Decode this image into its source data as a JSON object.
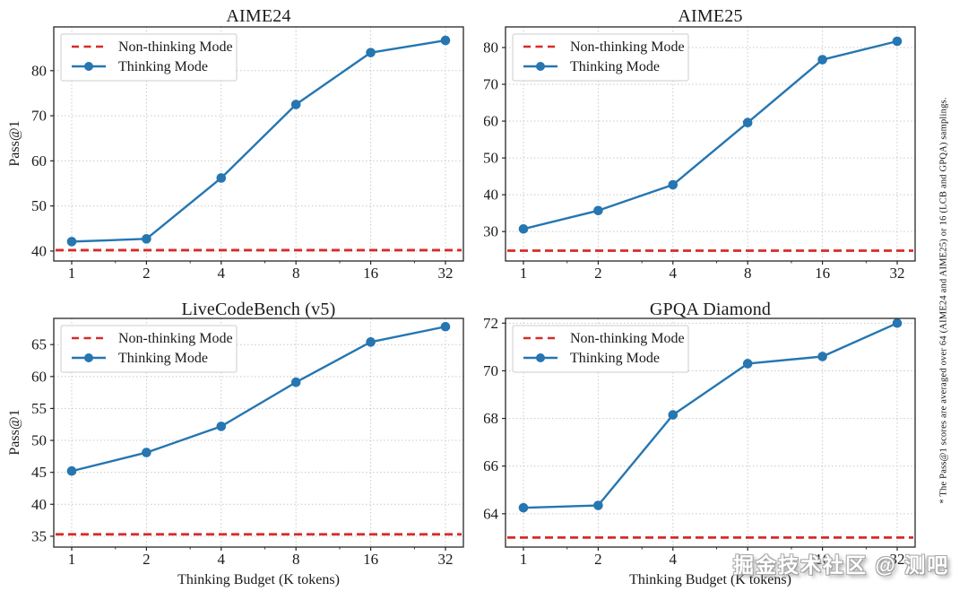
{
  "figure": {
    "background": "#ffffff",
    "side_note": "* The Pass@1 scores are averaged over 64 (AIME24 and AIME25) or 16 (LCB and GPQA) samplings.",
    "watermark": "掘金技术社区 @ 测吧"
  },
  "colors": {
    "thinking_line": "#2576b1",
    "non_thinking_line": "#d62b28",
    "grid": "#c9c9c9",
    "axis": "#262626",
    "text": "#1a1a1a",
    "legend_border": "#cccccc",
    "legend_bg": "#ffffff"
  },
  "legend": {
    "non_thinking_label": "Non-thinking Mode",
    "thinking_label": "Thinking Mode"
  },
  "x_axis": {
    "label": "Thinking Budget (K tokens)",
    "ticks": [
      1,
      2,
      4,
      8,
      16,
      32
    ],
    "scale": "log2"
  },
  "y_axis": {
    "label": "Pass@1"
  },
  "chart_data": [
    {
      "type": "line",
      "title": "AIME24",
      "x": [
        1,
        2,
        4,
        8,
        16,
        32
      ],
      "xlabel": "",
      "ylabel": "Pass@1",
      "yticks": [
        40,
        50,
        60,
        70,
        80
      ],
      "ylim": [
        37.8,
        89.7
      ],
      "grid": true,
      "legend_position": "upper left",
      "series": [
        {
          "name": "Non-thinking Mode",
          "style": "dashed-hline",
          "value": 40.2
        },
        {
          "name": "Thinking Mode",
          "style": "solid-markers",
          "values": [
            42.1,
            42.7,
            56.2,
            72.5,
            84.0,
            86.7
          ]
        }
      ]
    },
    {
      "type": "line",
      "title": "AIME25",
      "x": [
        1,
        2,
        4,
        8,
        16,
        32
      ],
      "xlabel": "",
      "ylabel": "",
      "yticks": [
        30,
        40,
        50,
        60,
        70,
        80
      ],
      "ylim": [
        22.0,
        85.6
      ],
      "grid": true,
      "legend_position": "upper left",
      "series": [
        {
          "name": "Non-thinking Mode",
          "style": "dashed-hline",
          "value": 24.8
        },
        {
          "name": "Thinking Mode",
          "style": "solid-markers",
          "values": [
            30.7,
            35.7,
            42.7,
            59.6,
            76.7,
            81.7
          ]
        }
      ]
    },
    {
      "type": "line",
      "title": "LiveCodeBench (v5)",
      "x": [
        1,
        2,
        4,
        8,
        16,
        32
      ],
      "xlabel": "Thinking Budget (K tokens)",
      "ylabel": "Pass@1",
      "yticks": [
        35,
        40,
        45,
        50,
        55,
        60,
        65
      ],
      "ylim": [
        33.3,
        69.1
      ],
      "grid": true,
      "legend_position": "upper left",
      "series": [
        {
          "name": "Non-thinking Mode",
          "style": "dashed-hline",
          "value": 35.3
        },
        {
          "name": "Thinking Mode",
          "style": "solid-markers",
          "values": [
            45.2,
            48.1,
            52.2,
            59.1,
            65.4,
            67.8
          ]
        }
      ]
    },
    {
      "type": "line",
      "title": "GPQA Diamond",
      "x": [
        1,
        2,
        4,
        8,
        16,
        32
      ],
      "xlabel": "Thinking Budget (K tokens)",
      "ylabel": "",
      "yticks": [
        64,
        66,
        68,
        70,
        72
      ],
      "ylim": [
        62.6,
        72.2
      ],
      "grid": true,
      "legend_position": "upper left",
      "series": [
        {
          "name": "Non-thinking Mode",
          "style": "dashed-hline",
          "value": 63.0
        },
        {
          "name": "Thinking Mode",
          "style": "solid-markers",
          "values": [
            64.25,
            64.35,
            68.15,
            70.3,
            70.6,
            72.0
          ]
        }
      ]
    }
  ]
}
